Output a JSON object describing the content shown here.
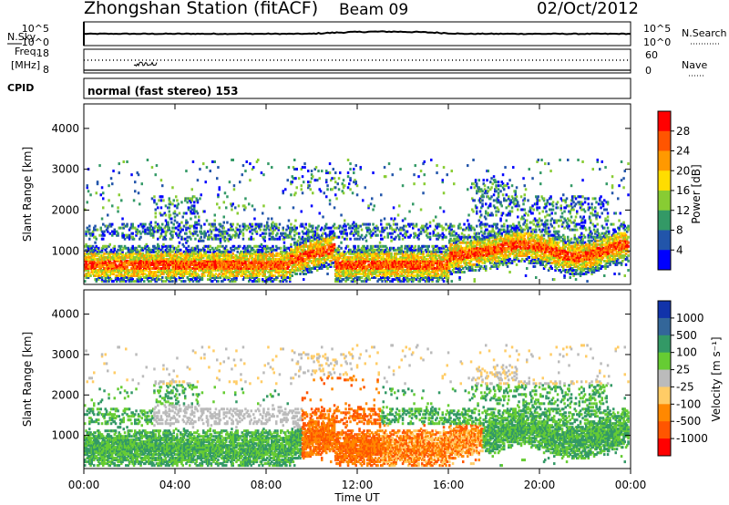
{
  "header": {
    "title": "Zhongshan Station (fitACF)",
    "beam": "Beam 09",
    "date": "02/Oct/2012"
  },
  "top_panels": {
    "nsky_label": "N.Sky",
    "nsky_ticks": [
      "10^5",
      "10^0"
    ],
    "nsearch_label": "N.Search",
    "nsearch_ticks": [
      "10^5",
      "10^0"
    ],
    "freq_label_1": "Freq.",
    "freq_label_2": "[MHz]",
    "freq_ticks": [
      "18",
      "8"
    ],
    "nave_label": "Nave",
    "nave_ticks": [
      "60",
      "0"
    ],
    "cpid_label": "CPID",
    "cpid_value": "normal (fast stereo) 153"
  },
  "chart_data": [
    {
      "type": "heatmap",
      "name": "power",
      "ylabel": "Slant Range [km]",
      "yticks": [
        "1000",
        "2000",
        "3000",
        "4000"
      ],
      "ylim": [
        180,
        4600
      ],
      "xlim": [
        0,
        24
      ],
      "colorbar": {
        "label": "Power [dB]",
        "ticks": [
          "28",
          "24",
          "20",
          "16",
          "12",
          "8",
          "4"
        ],
        "colors": [
          "#ff0000",
          "#ff5500",
          "#ff9900",
          "#ffdd00",
          "#88cc33",
          "#339966",
          "#2255aa",
          "#0000ff"
        ]
      }
    },
    {
      "type": "heatmap",
      "name": "velocity",
      "ylabel": "Slant Range [km]",
      "yticks": [
        "1000",
        "2000",
        "3000",
        "4000"
      ],
      "ylim": [
        180,
        4600
      ],
      "xlim": [
        0,
        24
      ],
      "colorbar": {
        "label": "Velocity [m s⁻¹]",
        "ticks": [
          "1000",
          "500",
          "100",
          "25",
          "-25",
          "-100",
          "-500",
          "-1000"
        ],
        "colors": [
          "#1133aa",
          "#336699",
          "#339966",
          "#66cc33",
          "#bbbbbb",
          "#ffcc66",
          "#ff8800",
          "#ff5500",
          "#ff0000"
        ]
      }
    }
  ],
  "x_axis": {
    "ticks": [
      "00:00",
      "04:00",
      "08:00",
      "12:00",
      "16:00",
      "20:00",
      "00:00"
    ],
    "label": "Time UT"
  }
}
